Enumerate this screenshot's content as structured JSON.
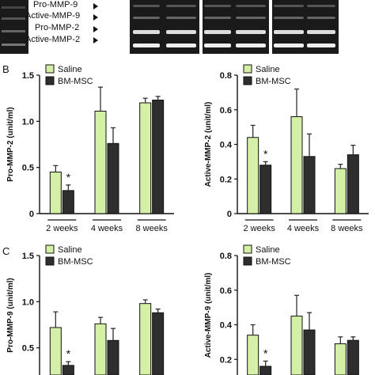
{
  "panels": {
    "A": {
      "letter": ""
    },
    "B": {
      "letter": "B"
    },
    "C": {
      "letter": "C"
    }
  },
  "gel": {
    "lane_labels": [
      "Pro-MMP-9",
      "Active-MMP-9",
      "Pro-MMP-2",
      "Active-MMP-2"
    ]
  },
  "colors": {
    "saline": "#d4f0a6",
    "bmmsc": "#2e2e2e",
    "axis": "#111111",
    "gel_background": "#1a1a1a"
  },
  "chart_data": [
    {
      "id": "pro-mmp2",
      "type": "bar",
      "panel": "B",
      "ylabel": "Pro-MMP-2 (unit/ml)",
      "xlabel": "",
      "categories": [
        "2 weeks",
        "4 weeks",
        "8 weeks"
      ],
      "ylim": [
        0,
        1.5
      ],
      "yticks": [
        "0",
        "0.5",
        "1.0",
        "1.5"
      ],
      "ytick_values": [
        0,
        0.5,
        1.0,
        1.5
      ],
      "legend": "top-left",
      "series": [
        {
          "name": "Saline",
          "values": [
            0.45,
            1.11,
            1.2
          ],
          "errors": [
            0.07,
            0.26,
            0.05
          ]
        },
        {
          "name": "BM-MSC",
          "values": [
            0.25,
            0.76,
            1.23
          ],
          "errors": [
            0.06,
            0.17,
            0.04
          ]
        }
      ],
      "annotations": [
        {
          "text": "*",
          "category": "2 weeks",
          "series": "BM-MSC"
        }
      ]
    },
    {
      "id": "active-mmp2",
      "type": "bar",
      "panel": "B",
      "ylabel": "Active-MMP-2 (unit/ml)",
      "xlabel": "",
      "categories": [
        "2 weeks",
        "4 weeks",
        "8 weeks"
      ],
      "ylim": [
        0,
        0.8
      ],
      "yticks": [
        "0",
        "0.2",
        "0.4",
        "0.6",
        "0.8"
      ],
      "ytick_values": [
        0,
        0.2,
        0.4,
        0.6,
        0.8
      ],
      "legend": "top-left",
      "series": [
        {
          "name": "Saline",
          "values": [
            0.44,
            0.56,
            0.26
          ],
          "errors": [
            0.07,
            0.16,
            0.025
          ]
        },
        {
          "name": "BM-MSC",
          "values": [
            0.28,
            0.33,
            0.34
          ],
          "errors": [
            0.02,
            0.13,
            0.055
          ]
        }
      ],
      "annotations": [
        {
          "text": "*",
          "category": "2 weeks",
          "series": "BM-MSC"
        }
      ]
    },
    {
      "id": "pro-mmp9",
      "type": "bar",
      "panel": "C",
      "ylabel": "Pro-MMP-9 (unit/ml)",
      "xlabel": "",
      "categories": [
        "",
        "",
        ""
      ],
      "ylim": [
        0,
        1.5
      ],
      "yticks": [
        "0.5",
        "1.0",
        "1.5"
      ],
      "ytick_values": [
        0.5,
        1.0,
        1.5
      ],
      "legend": "top-left",
      "series": [
        {
          "name": "Saline",
          "values": [
            0.72,
            0.76,
            0.98
          ],
          "errors": [
            0.17,
            0.07,
            0.04
          ]
        },
        {
          "name": "BM-MSC",
          "values": [
            0.31,
            0.58,
            0.88
          ],
          "errors": [
            0.04,
            0.13,
            0.04
          ]
        }
      ],
      "annotations": [
        {
          "text": "*",
          "category": "",
          "series": "BM-MSC"
        }
      ]
    },
    {
      "id": "active-mmp9",
      "type": "bar",
      "panel": "C",
      "ylabel": "Active-MMP-9 (unit/ml)",
      "xlabel": "",
      "categories": [
        "",
        "",
        ""
      ],
      "ylim": [
        0,
        0.8
      ],
      "yticks": [
        "0.2",
        "0.4",
        "0.6",
        "0.8"
      ],
      "ytick_values": [
        0.2,
        0.4,
        0.6,
        0.8
      ],
      "legend": "top-left",
      "series": [
        {
          "name": "Saline",
          "values": [
            0.34,
            0.45,
            0.29
          ],
          "errors": [
            0.06,
            0.12,
            0.04
          ]
        },
        {
          "name": "BM-MSC",
          "values": [
            0.16,
            0.37,
            0.31
          ],
          "errors": [
            0.03,
            0.1,
            0.02
          ]
        }
      ],
      "annotations": [
        {
          "text": "*",
          "category": "",
          "series": "BM-MSC"
        }
      ]
    }
  ]
}
